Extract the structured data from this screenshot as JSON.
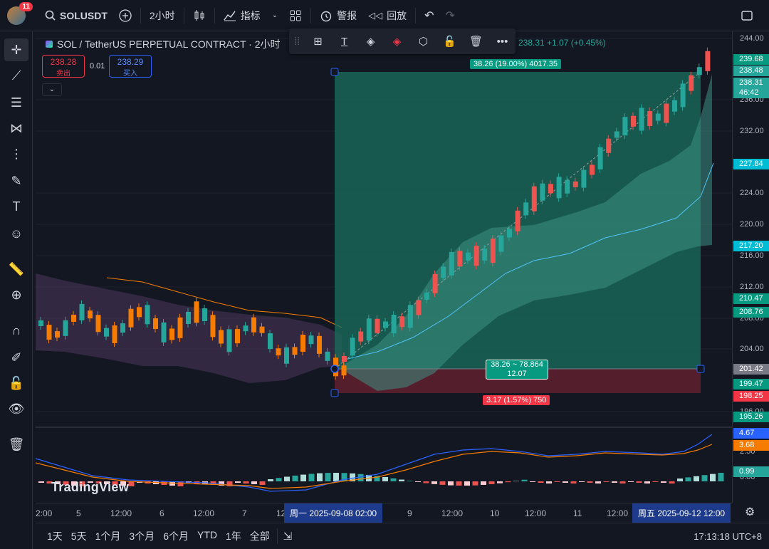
{
  "topbar": {
    "notifications": "11",
    "symbol": "SOLUSDT",
    "interval": "2小时",
    "indicators": "指标",
    "alerts": "警报",
    "replay": "回放"
  },
  "legend": {
    "title": "SOL / TetherUS PERPETUAL CONTRACT · 2小时",
    "change": "238.31 +1.07 (+0.45%)",
    "sell_price": "238.28",
    "sell_label": "卖出",
    "spread": "0.01",
    "buy_price": "238.29",
    "buy_label": "买入"
  },
  "position_tool": {
    "target_label": "38.26 (19.00%) 4017.35",
    "ratio_line1": "38.26 ~ 78.864",
    "ratio_line2": "12.07",
    "stop_label": "3.17 (1.57%) 750"
  },
  "price_axis": {
    "ticks": [
      "244.00",
      "236.00",
      "232.00",
      "224.00",
      "220.00",
      "216.00",
      "212.00",
      "208.00",
      "204.00",
      "196.00"
    ],
    "tags": [
      {
        "value": "239.68",
        "color": "#089981"
      },
      {
        "value": "238.48",
        "color": "#26a69a"
      },
      {
        "value": "238.31",
        "color": "#26a69a"
      },
      {
        "value": "46:42",
        "color": "#26a69a"
      },
      {
        "value": "227.84",
        "color": "#00bcd4"
      },
      {
        "value": "217.20",
        "color": "#00bcd4"
      },
      {
        "value": "210.47",
        "color": "#089981"
      },
      {
        "value": "208.76",
        "color": "#089981"
      },
      {
        "value": "201.42",
        "color": "#787b86"
      },
      {
        "value": "199.47",
        "color": "#089981"
      },
      {
        "value": "198.25",
        "color": "#f23645"
      },
      {
        "value": "195.26",
        "color": "#089981"
      }
    ],
    "macd_ticks": [
      "2.50",
      "0.00"
    ],
    "macd_tags": [
      {
        "value": "4.67",
        "color": "#2962ff"
      },
      {
        "value": "3.68",
        "color": "#f57c00"
      },
      {
        "value": "0.99",
        "color": "#26a69a"
      }
    ]
  },
  "time_axis": {
    "labels": [
      "2:00",
      "5",
      "12:00",
      "6",
      "12:00",
      "7",
      "12",
      "9",
      "12:00",
      "10",
      "12:00",
      "11",
      "12:00"
    ],
    "start_highlight": "周一 2025-09-08  02:00",
    "end_highlight": "周五 2025-09-12  12:00"
  },
  "bottombar": {
    "ranges": [
      "1天",
      "5天",
      "1个月",
      "3个月",
      "6个月",
      "YTD",
      "1年",
      "全部"
    ],
    "clock": "17:13:18 UTC+8"
  },
  "watermark": "TradingView",
  "colors": {
    "up": "#26a69a",
    "down": "#ef5350",
    "profit_zone": "#1f6f5f",
    "loss_zone": "#5c2430"
  }
}
